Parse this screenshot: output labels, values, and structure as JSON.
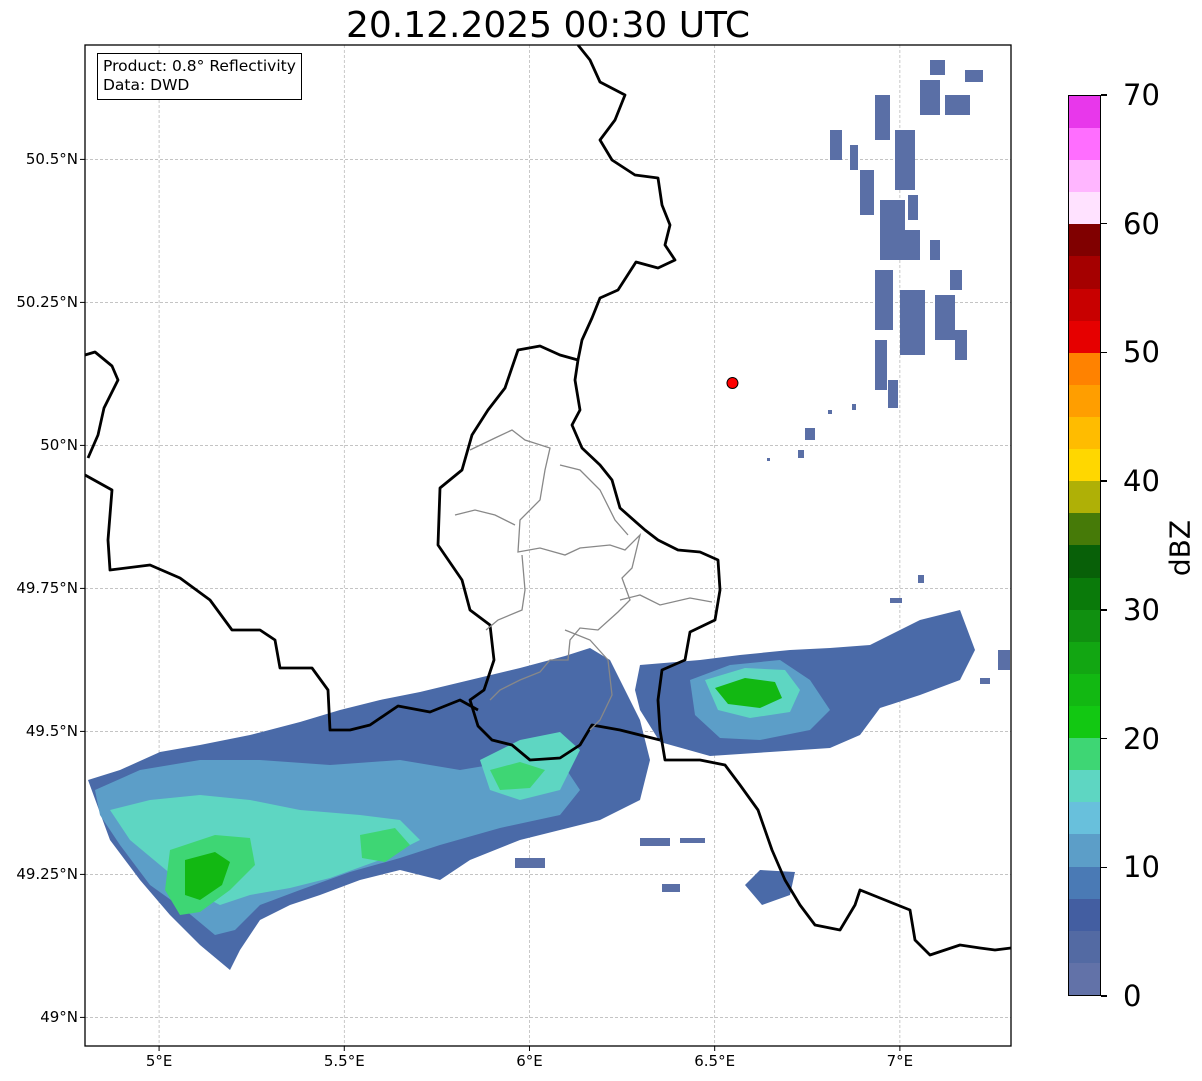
{
  "title": "20.12.2025 00:30 UTC",
  "info_box": {
    "product": "Product: 0.8° Reflectivity",
    "data": "Data: DWD"
  },
  "map": {
    "projection": "PlateCarree",
    "extent": {
      "lon_min": 4.8,
      "lon_max": 7.3,
      "lat_min": 48.95,
      "lat_max": 50.7
    },
    "grid": true,
    "lat_ticks": [
      {
        "value": 50.5,
        "label": "50.5°N"
      },
      {
        "value": 50.25,
        "label": "50.25°N"
      },
      {
        "value": 50.0,
        "label": "50°N"
      },
      {
        "value": 49.75,
        "label": "49.75°N"
      },
      {
        "value": 49.5,
        "label": "49.5°N"
      },
      {
        "value": 49.25,
        "label": "49.25°N"
      },
      {
        "value": 49.0,
        "label": "49°N"
      }
    ],
    "lon_ticks": [
      {
        "value": 5.0,
        "label": "5°E"
      },
      {
        "value": 5.5,
        "label": "5.5°E"
      },
      {
        "value": 6.0,
        "label": "6°E"
      },
      {
        "value": 6.5,
        "label": "6.5°E"
      },
      {
        "value": 7.0,
        "label": "7°E"
      }
    ],
    "radar_site": {
      "lon": 6.548,
      "lat": 50.109,
      "color": "#ff0000"
    },
    "colors": {
      "border": "#000000",
      "admin_border": "#808080",
      "grid": "#b0b0b0"
    }
  },
  "colorbar": {
    "label": "dBZ",
    "min": 0,
    "max": 70,
    "ticks": [
      {
        "value": 0,
        "label": "0"
      },
      {
        "value": 10,
        "label": "10"
      },
      {
        "value": 20,
        "label": "20"
      },
      {
        "value": 30,
        "label": "30"
      },
      {
        "value": 40,
        "label": "40"
      },
      {
        "value": 50,
        "label": "50"
      },
      {
        "value": 60,
        "label": "60"
      },
      {
        "value": 70,
        "label": "70"
      }
    ],
    "colors": [
      "#6272a8",
      "#536aa3",
      "#435ea1",
      "#4a7ab5",
      "#5c9ec8",
      "#68c0dc",
      "#5ed6c2",
      "#3ed674",
      "#12c812",
      "#12b812",
      "#12a612",
      "#109010",
      "#0a7a0a",
      "#086008",
      "#467a08",
      "#afb006",
      "#ffd700",
      "#ffbc00",
      "#ff9e00",
      "#ff8200",
      "#e60000",
      "#c80000",
      "#a50000",
      "#800000",
      "#ffe2ff",
      "#ffb6ff",
      "#ff6eff",
      "#e837eb"
    ]
  }
}
